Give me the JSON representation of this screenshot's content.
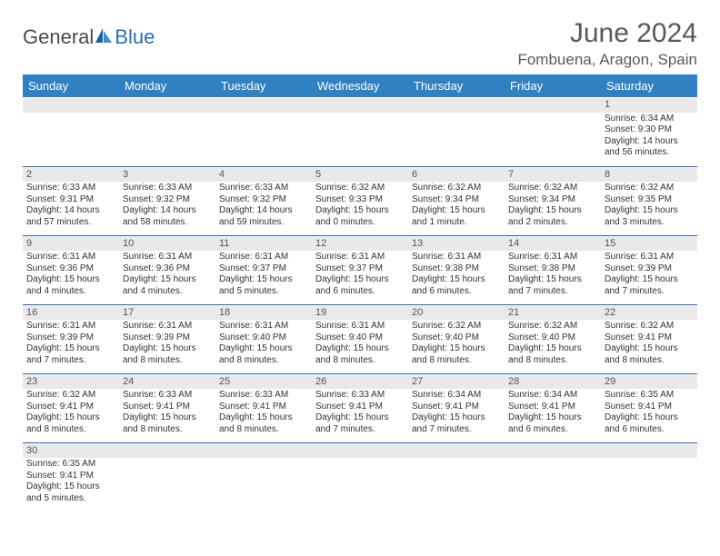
{
  "logo": {
    "text1": "General",
    "text2": "Blue"
  },
  "title": "June 2024",
  "location": "Fombuena, Aragon, Spain",
  "colors": {
    "header_bg": "#3181c2",
    "header_text": "#ffffff",
    "daynum_bg": "#e9e9e9",
    "cell_border": "#1f5fa8",
    "title_color": "#595959",
    "logo_blue": "#2a6db5",
    "logo_gray": "#4a4a4a"
  },
  "weekdays": [
    "Sunday",
    "Monday",
    "Tuesday",
    "Wednesday",
    "Thursday",
    "Friday",
    "Saturday"
  ],
  "weeks": [
    [
      null,
      null,
      null,
      null,
      null,
      null,
      {
        "d": "1",
        "sr": "Sunrise: 6:34 AM",
        "ss": "Sunset: 9:30 PM",
        "dl1": "Daylight: 14 hours",
        "dl2": "and 56 minutes."
      }
    ],
    [
      {
        "d": "2",
        "sr": "Sunrise: 6:33 AM",
        "ss": "Sunset: 9:31 PM",
        "dl1": "Daylight: 14 hours",
        "dl2": "and 57 minutes."
      },
      {
        "d": "3",
        "sr": "Sunrise: 6:33 AM",
        "ss": "Sunset: 9:32 PM",
        "dl1": "Daylight: 14 hours",
        "dl2": "and 58 minutes."
      },
      {
        "d": "4",
        "sr": "Sunrise: 6:33 AM",
        "ss": "Sunset: 9:32 PM",
        "dl1": "Daylight: 14 hours",
        "dl2": "and 59 minutes."
      },
      {
        "d": "5",
        "sr": "Sunrise: 6:32 AM",
        "ss": "Sunset: 9:33 PM",
        "dl1": "Daylight: 15 hours",
        "dl2": "and 0 minutes."
      },
      {
        "d": "6",
        "sr": "Sunrise: 6:32 AM",
        "ss": "Sunset: 9:34 PM",
        "dl1": "Daylight: 15 hours",
        "dl2": "and 1 minute."
      },
      {
        "d": "7",
        "sr": "Sunrise: 6:32 AM",
        "ss": "Sunset: 9:34 PM",
        "dl1": "Daylight: 15 hours",
        "dl2": "and 2 minutes."
      },
      {
        "d": "8",
        "sr": "Sunrise: 6:32 AM",
        "ss": "Sunset: 9:35 PM",
        "dl1": "Daylight: 15 hours",
        "dl2": "and 3 minutes."
      }
    ],
    [
      {
        "d": "9",
        "sr": "Sunrise: 6:31 AM",
        "ss": "Sunset: 9:36 PM",
        "dl1": "Daylight: 15 hours",
        "dl2": "and 4 minutes."
      },
      {
        "d": "10",
        "sr": "Sunrise: 6:31 AM",
        "ss": "Sunset: 9:36 PM",
        "dl1": "Daylight: 15 hours",
        "dl2": "and 4 minutes."
      },
      {
        "d": "11",
        "sr": "Sunrise: 6:31 AM",
        "ss": "Sunset: 9:37 PM",
        "dl1": "Daylight: 15 hours",
        "dl2": "and 5 minutes."
      },
      {
        "d": "12",
        "sr": "Sunrise: 6:31 AM",
        "ss": "Sunset: 9:37 PM",
        "dl1": "Daylight: 15 hours",
        "dl2": "and 6 minutes."
      },
      {
        "d": "13",
        "sr": "Sunrise: 6:31 AM",
        "ss": "Sunset: 9:38 PM",
        "dl1": "Daylight: 15 hours",
        "dl2": "and 6 minutes."
      },
      {
        "d": "14",
        "sr": "Sunrise: 6:31 AM",
        "ss": "Sunset: 9:38 PM",
        "dl1": "Daylight: 15 hours",
        "dl2": "and 7 minutes."
      },
      {
        "d": "15",
        "sr": "Sunrise: 6:31 AM",
        "ss": "Sunset: 9:39 PM",
        "dl1": "Daylight: 15 hours",
        "dl2": "and 7 minutes."
      }
    ],
    [
      {
        "d": "16",
        "sr": "Sunrise: 6:31 AM",
        "ss": "Sunset: 9:39 PM",
        "dl1": "Daylight: 15 hours",
        "dl2": "and 7 minutes."
      },
      {
        "d": "17",
        "sr": "Sunrise: 6:31 AM",
        "ss": "Sunset: 9:39 PM",
        "dl1": "Daylight: 15 hours",
        "dl2": "and 8 minutes."
      },
      {
        "d": "18",
        "sr": "Sunrise: 6:31 AM",
        "ss": "Sunset: 9:40 PM",
        "dl1": "Daylight: 15 hours",
        "dl2": "and 8 minutes."
      },
      {
        "d": "19",
        "sr": "Sunrise: 6:31 AM",
        "ss": "Sunset: 9:40 PM",
        "dl1": "Daylight: 15 hours",
        "dl2": "and 8 minutes."
      },
      {
        "d": "20",
        "sr": "Sunrise: 6:32 AM",
        "ss": "Sunset: 9:40 PM",
        "dl1": "Daylight: 15 hours",
        "dl2": "and 8 minutes."
      },
      {
        "d": "21",
        "sr": "Sunrise: 6:32 AM",
        "ss": "Sunset: 9:40 PM",
        "dl1": "Daylight: 15 hours",
        "dl2": "and 8 minutes."
      },
      {
        "d": "22",
        "sr": "Sunrise: 6:32 AM",
        "ss": "Sunset: 9:41 PM",
        "dl1": "Daylight: 15 hours",
        "dl2": "and 8 minutes."
      }
    ],
    [
      {
        "d": "23",
        "sr": "Sunrise: 6:32 AM",
        "ss": "Sunset: 9:41 PM",
        "dl1": "Daylight: 15 hours",
        "dl2": "and 8 minutes."
      },
      {
        "d": "24",
        "sr": "Sunrise: 6:33 AM",
        "ss": "Sunset: 9:41 PM",
        "dl1": "Daylight: 15 hours",
        "dl2": "and 8 minutes."
      },
      {
        "d": "25",
        "sr": "Sunrise: 6:33 AM",
        "ss": "Sunset: 9:41 PM",
        "dl1": "Daylight: 15 hours",
        "dl2": "and 8 minutes."
      },
      {
        "d": "26",
        "sr": "Sunrise: 6:33 AM",
        "ss": "Sunset: 9:41 PM",
        "dl1": "Daylight: 15 hours",
        "dl2": "and 7 minutes."
      },
      {
        "d": "27",
        "sr": "Sunrise: 6:34 AM",
        "ss": "Sunset: 9:41 PM",
        "dl1": "Daylight: 15 hours",
        "dl2": "and 7 minutes."
      },
      {
        "d": "28",
        "sr": "Sunrise: 6:34 AM",
        "ss": "Sunset: 9:41 PM",
        "dl1": "Daylight: 15 hours",
        "dl2": "and 6 minutes."
      },
      {
        "d": "29",
        "sr": "Sunrise: 6:35 AM",
        "ss": "Sunset: 9:41 PM",
        "dl1": "Daylight: 15 hours",
        "dl2": "and 6 minutes."
      }
    ],
    [
      {
        "d": "30",
        "sr": "Sunrise: 6:35 AM",
        "ss": "Sunset: 9:41 PM",
        "dl1": "Daylight: 15 hours",
        "dl2": "and 5 minutes."
      },
      null,
      null,
      null,
      null,
      null,
      null
    ]
  ]
}
